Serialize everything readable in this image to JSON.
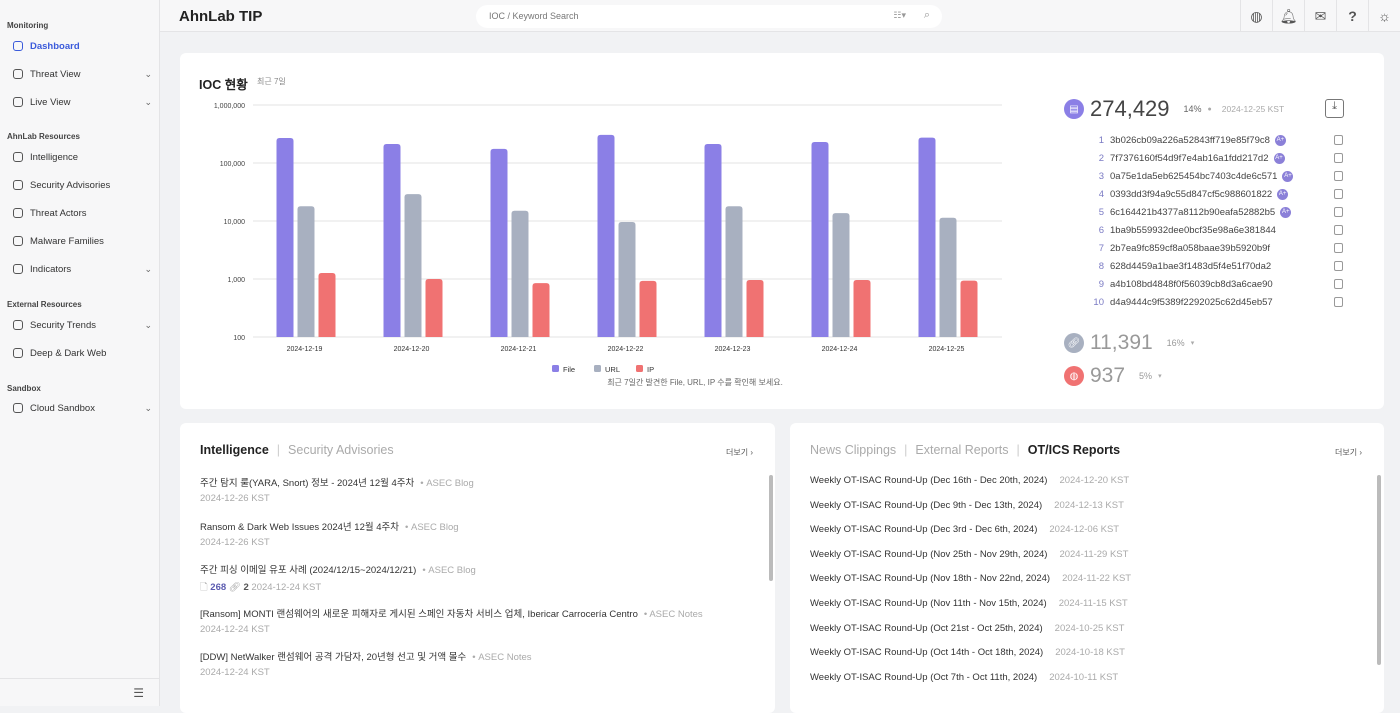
{
  "header": {
    "logo": "AhnLab TIP",
    "search_placeholder": "IOC / Keyword Search"
  },
  "sidebar": {
    "sections": [
      "Monitoring",
      "AhnLab Resources",
      "External Resources",
      "Sandbox"
    ],
    "items": [
      {
        "label": "Dashboard",
        "active": true,
        "chevron": false
      },
      {
        "label": "Threat View",
        "chevron": true
      },
      {
        "label": "Live View",
        "chevron": true
      },
      {
        "label": "Intelligence",
        "chevron": false
      },
      {
        "label": "Security Advisories",
        "chevron": false
      },
      {
        "label": "Threat Actors",
        "chevron": false
      },
      {
        "label": "Malware Families",
        "chevron": false
      },
      {
        "label": "Indicators",
        "chevron": true
      },
      {
        "label": "Security Trends",
        "chevron": true
      },
      {
        "label": "Deep & Dark Web",
        "chevron": false
      },
      {
        "label": "Cloud Sandbox",
        "chevron": true
      }
    ]
  },
  "ioc": {
    "title": "IOC 현황",
    "period": "최근 7일",
    "caption": "최근 7일간 발견한 File, URL, IP 수를 확인해 보세요.",
    "file": {
      "count": "274,429",
      "pct": "14%",
      "date": "2024-12-25 KST"
    },
    "url": {
      "count": "11,391",
      "pct": "16%"
    },
    "ip": {
      "count": "937",
      "pct": "5%"
    },
    "hashes": [
      {
        "n": "1",
        "h": "3b026cb09a226a52843ff719e85f79c8",
        "badge": "A+"
      },
      {
        "n": "2",
        "h": "7f7376160f54d9f7e4ab16a1fdd217d2",
        "badge": "A+"
      },
      {
        "n": "3",
        "h": "0a75e1da5eb625454bc7403c4de6c571",
        "badge": "A+"
      },
      {
        "n": "4",
        "h": "0393dd3f94a9c55d847cf5c988601822",
        "badge": "A+"
      },
      {
        "n": "5",
        "h": "6c164421b4377a8112b90eafa52882b5",
        "badge": "A+"
      },
      {
        "n": "6",
        "h": "1ba9b559932dee0bcf35e98a6e381844"
      },
      {
        "n": "7",
        "h": "2b7ea9fc859cf8a058baae39b5920b9f"
      },
      {
        "n": "8",
        "h": "628d4459a1bae3f1483d5f4e51f70da2"
      },
      {
        "n": "9",
        "h": "a4b108bd4848f0f56039cb8d3a6cae90"
      },
      {
        "n": "10",
        "h": "d4a9444c9f5389f2292025c62d45eb57"
      }
    ]
  },
  "chart_data": {
    "type": "bar",
    "scale": "log",
    "ylim": [
      100,
      1000000
    ],
    "yticks": [
      "1,000,000",
      "100,000",
      "10,000",
      "1,000",
      "100"
    ],
    "categories": [
      "2024-12-19",
      "2024-12-20",
      "2024-12-21",
      "2024-12-22",
      "2024-12-23",
      "2024-12-24",
      "2024-12-25"
    ],
    "series": [
      {
        "name": "File",
        "color": "#8b7fe6",
        "values": [
          270000,
          213000,
          175000,
          305000,
          213000,
          230000,
          274429
        ]
      },
      {
        "name": "URL",
        "color": "#a8b0c0",
        "values": [
          18000,
          29000,
          15000,
          9600,
          18000,
          13700,
          11391
        ]
      },
      {
        "name": "IP",
        "color": "#f07272",
        "values": [
          1270,
          1000,
          850,
          930,
          960,
          960,
          937
        ]
      }
    ],
    "legend": "bottom"
  },
  "intel": {
    "tab_active": "Intelligence",
    "tab_inactive": "Security Advisories",
    "more": "더보기",
    "items": [
      {
        "title": "주간 탐지 룰(YARA, Snort) 정보 - 2024년 12월 4주차",
        "src": "ASEC Blog",
        "date": "2024-12-26 KST"
      },
      {
        "title": "Ransom & Dark Web Issues 2024년 12월 4주차",
        "src": "ASEC Blog",
        "date": "2024-12-26 KST"
      },
      {
        "title": "주간 피싱 이메일 유포 사례 (2024/12/15~2024/12/21)",
        "src": "ASEC Blog",
        "date": "2024-12-24 KST",
        "files": "268",
        "links": "2"
      },
      {
        "title": "[Ransom] MONTI 랜섬웨어의 새로운 피해자로 게시된 스페인 자동차 서비스 업체, Ibericar Carrocería Centro",
        "src": "ASEC Notes",
        "date": "2024-12-24 KST"
      },
      {
        "title": "[DDW] NetWalker 랜섬웨어 공격 가담자, 20년형 선고 및 거액 몰수",
        "src": "ASEC Notes",
        "date": "2024-12-24 KST"
      }
    ]
  },
  "reports": {
    "tabs": [
      "News Clippings",
      "External Reports",
      "OT/ICS Reports"
    ],
    "more": "더보기",
    "items": [
      {
        "title": "Weekly OT-ISAC Round-Up (Dec 16th - Dec 20th, 2024)",
        "date": "2024-12-20 KST"
      },
      {
        "title": "Weekly OT-ISAC Round-Up (Dec 9th - Dec 13th, 2024)",
        "date": "2024-12-13 KST"
      },
      {
        "title": "Weekly OT-ISAC Round-Up (Dec 3rd - Dec 6th, 2024)",
        "date": "2024-12-06 KST"
      },
      {
        "title": "Weekly OT-ISAC Round-Up (Nov 25th - Nov 29th, 2024)",
        "date": "2024-11-29 KST"
      },
      {
        "title": "Weekly OT-ISAC Round-Up (Nov 18th - Nov 22nd, 2024)",
        "date": "2024-11-22 KST"
      },
      {
        "title": "Weekly OT-ISAC Round-Up (Nov 11th - Nov 15th, 2024)",
        "date": "2024-11-15 KST"
      },
      {
        "title": "Weekly OT-ISAC Round-Up (Oct 21st - Oct 25th, 2024)",
        "date": "2024-10-25 KST"
      },
      {
        "title": "Weekly OT-ISAC Round-Up (Oct 14th - Oct 18th, 2024)",
        "date": "2024-10-18 KST"
      },
      {
        "title": "Weekly OT-ISAC Round-Up (Oct 7th - Oct 11th, 2024)",
        "date": "2024-10-11 KST"
      }
    ]
  }
}
